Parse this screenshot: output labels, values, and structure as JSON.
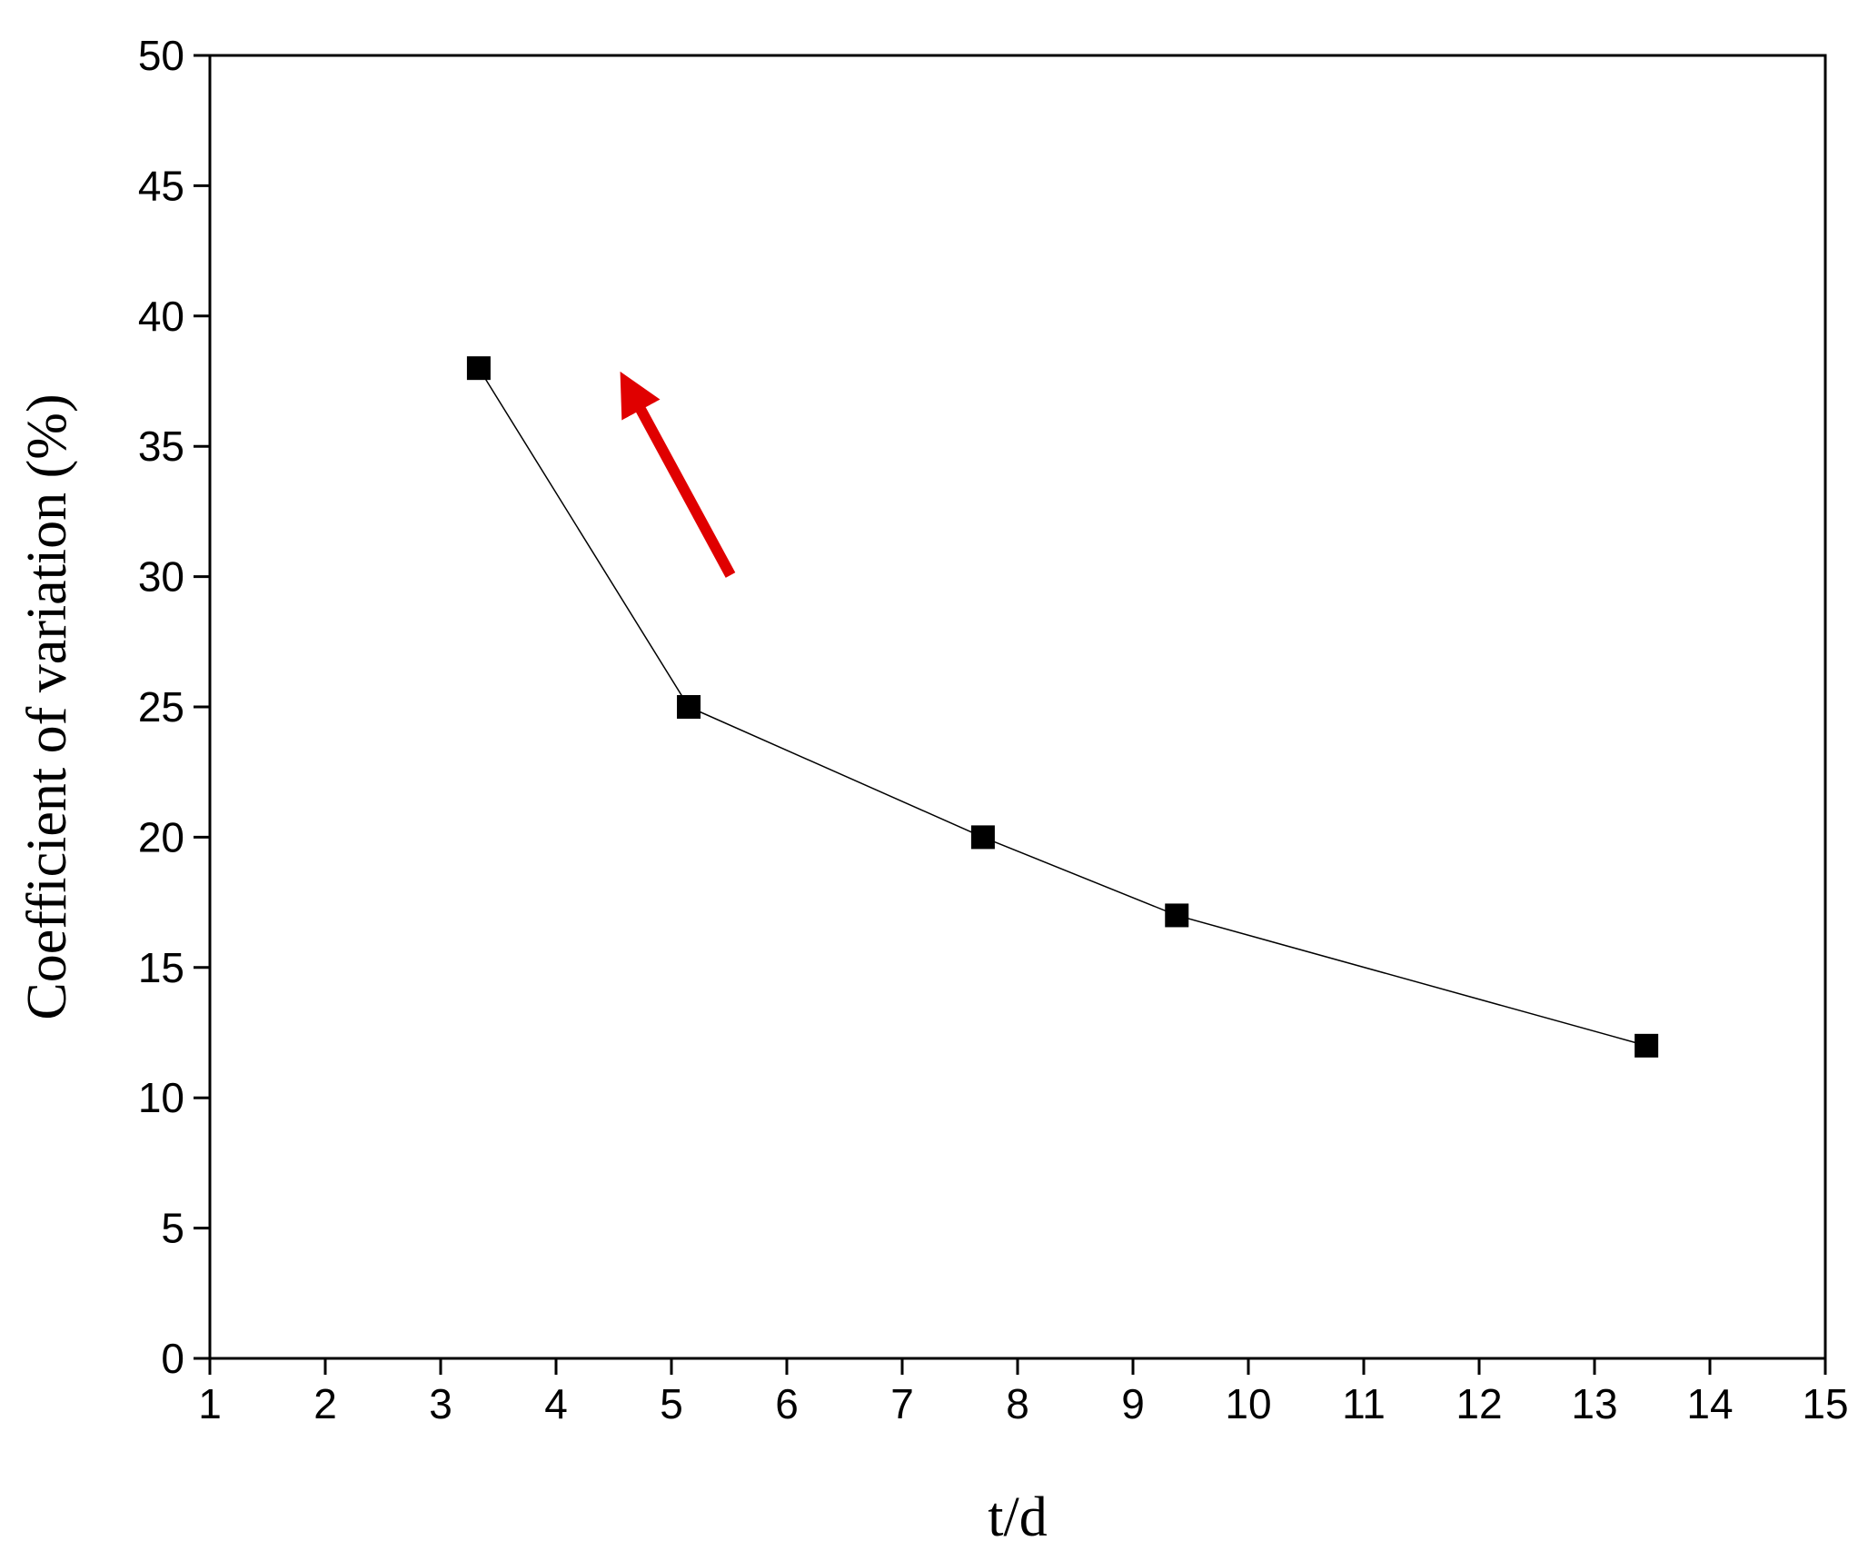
{
  "chart_data": {
    "type": "line",
    "x_label": "t/d",
    "y_label": "Coefficient of variation (%)",
    "series": [
      {
        "name": "Coefficient of variation",
        "color": "#000000",
        "marker": "square",
        "x": [
          3.33,
          5.15,
          7.7,
          9.38,
          13.45
        ],
        "values": [
          38,
          25,
          20,
          17,
          12
        ]
      }
    ],
    "xlim": [
      1,
      15
    ],
    "xticks": [
      1,
      2,
      3,
      4,
      5,
      6,
      7,
      8,
      9,
      10,
      11,
      12,
      13,
      14,
      15
    ],
    "ylim": [
      0,
      50
    ],
    "yticks": [
      0,
      5,
      10,
      15,
      20,
      25,
      30,
      35,
      40,
      45,
      50
    ],
    "grid": false
  }
}
